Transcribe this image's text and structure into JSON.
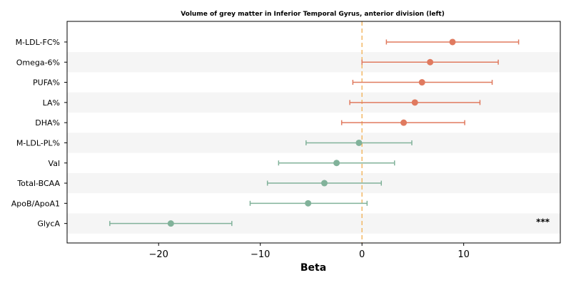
{
  "chart_data": {
    "type": "forest",
    "title": "Volume of grey matter in Inferior Temporal Gyrus, anterior division (left)",
    "xlabel": "Beta",
    "ylabel": "",
    "xlim": [
      -29,
      19.5
    ],
    "xticks": [
      -20,
      -10,
      0,
      10
    ],
    "xtick_labels": [
      "−20",
      "−10",
      "0",
      "10"
    ],
    "reference_line": 0,
    "grid": false,
    "colors": {
      "positive": "#E07A5F",
      "negative": "#81B29A",
      "reference": "#F2B866",
      "band": "#f5f5f5"
    },
    "rows": [
      {
        "label": "M-LDL-FC%",
        "beta": 8.9,
        "ci_low": 2.4,
        "ci_high": 15.4,
        "annotation": ""
      },
      {
        "label": "Omega-6%",
        "beta": 6.7,
        "ci_low": 0.0,
        "ci_high": 13.4,
        "annotation": ""
      },
      {
        "label": "PUFA%",
        "beta": 5.9,
        "ci_low": -0.9,
        "ci_high": 12.8,
        "annotation": ""
      },
      {
        "label": "LA%",
        "beta": 5.2,
        "ci_low": -1.2,
        "ci_high": 11.6,
        "annotation": ""
      },
      {
        "label": "DHA%",
        "beta": 4.1,
        "ci_low": -2.0,
        "ci_high": 10.1,
        "annotation": ""
      },
      {
        "label": "M-LDL-PL%",
        "beta": -0.3,
        "ci_low": -5.5,
        "ci_high": 4.9,
        "annotation": ""
      },
      {
        "label": "Val",
        "beta": -2.5,
        "ci_low": -8.2,
        "ci_high": 3.2,
        "annotation": ""
      },
      {
        "label": "Total-BCAA",
        "beta": -3.7,
        "ci_low": -9.3,
        "ci_high": 1.9,
        "annotation": ""
      },
      {
        "label": "ApoB/ApoA1",
        "beta": -5.3,
        "ci_low": -11.0,
        "ci_high": 0.5,
        "annotation": ""
      },
      {
        "label": "GlycA",
        "beta": -18.8,
        "ci_low": -24.8,
        "ci_high": -12.8,
        "annotation": "***"
      }
    ]
  }
}
